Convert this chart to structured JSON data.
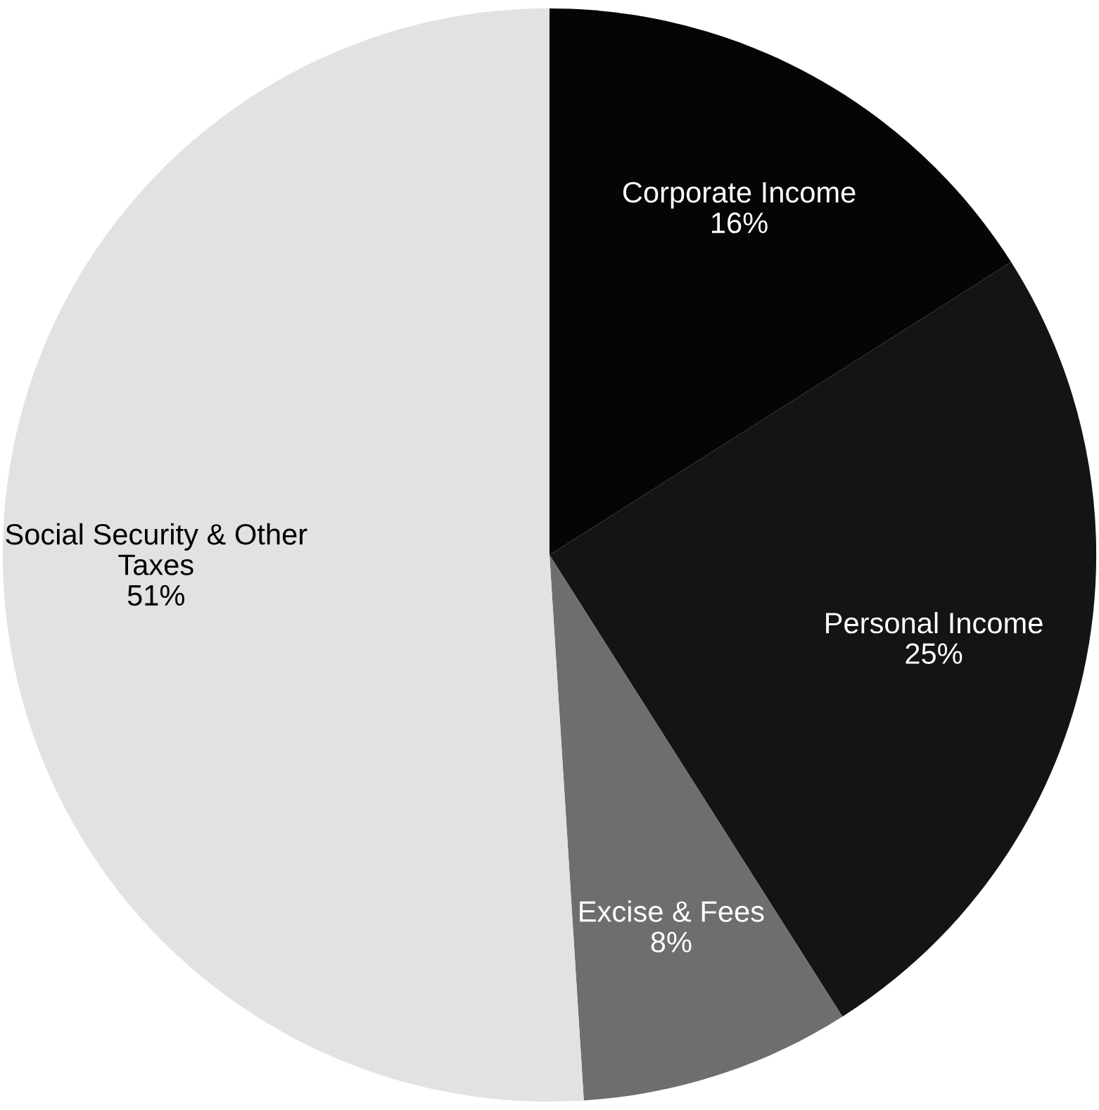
{
  "chart_data": {
    "type": "pie",
    "categories": [
      "Corporate Income",
      "Personal Income",
      "Excise & Fees",
      "Social Security & Other\nTaxes"
    ],
    "values": [
      16,
      25,
      8,
      51
    ],
    "value_labels": [
      "16%",
      "25%",
      "8%",
      "51%"
    ],
    "colors": [
      "#050505",
      "#141414",
      "#6e6e6e",
      "#e2e2e2"
    ]
  }
}
